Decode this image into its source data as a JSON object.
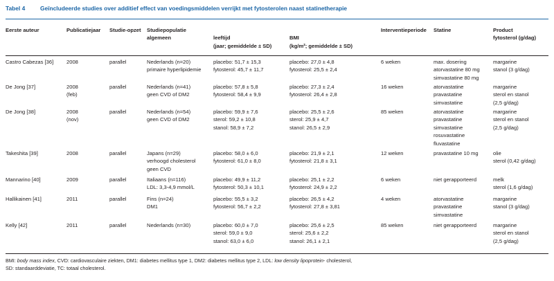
{
  "table": {
    "number": "Tabel 4",
    "title": "Geïncludeerde studies over additief effect van voedingsmiddelen verrijkt met fytosterolen naast statinetherapie"
  },
  "headers": {
    "author": "Eerste auteur",
    "year": "Publicatiejaar",
    "design": "Studie-opzet",
    "population": [
      "Studiepopulatie",
      "algemeen"
    ],
    "age": [
      "",
      "leeftijd",
      "(jaar; gemiddelde ± SD)"
    ],
    "bmi": [
      "",
      "BMI",
      "(kg/m²; gemiddelde ± SD)"
    ],
    "period": "Interventieperiode",
    "statin": "Statine",
    "product": [
      "Product",
      "fytosterol (g/dag)"
    ]
  },
  "rows": [
    {
      "author": [
        "Castro Cabezas [36]"
      ],
      "year": [
        "2008"
      ],
      "design": [
        "parallel"
      ],
      "population": [
        "Nederlands (n=20)",
        "primaire hyperlipidemie"
      ],
      "age": [
        "placebo: 51,7 ± 15,3",
        "fytosterol: 45,7 ± 11,7"
      ],
      "bmi": [
        "placebo: 27,0 ± 4,8",
        "fytosterol: 25,5 ± 2,4"
      ],
      "period": [
        "6 weken"
      ],
      "statin": [
        "max. dosering",
        "atorvastatine 80 mg",
        "simvastatine 80 mg"
      ],
      "product": [
        "margarine",
        "stanol (3 g/dag)"
      ]
    },
    {
      "author": [
        "De Jong [37]"
      ],
      "year": [
        "2008",
        "(feb)"
      ],
      "design": [
        "parallel"
      ],
      "population": [
        "Nederlands (n=41)",
        "geen CVD of DM2"
      ],
      "age": [
        "placebo: 57,8 ± 5,8",
        "fytosterol: 58,4 ± 9,9"
      ],
      "bmi": [
        "placebo: 27,3 ± 2,4",
        "fytosterol: 26,4 ± 2,8"
      ],
      "period": [
        "16 weken"
      ],
      "statin": [
        "atorvastatine",
        "pravastatine",
        "simvastatine"
      ],
      "product": [
        "margarine",
        "sterol en stanol",
        "(2,5 g/dag)"
      ]
    },
    {
      "author": [
        "De Jong [38]"
      ],
      "year": [
        "2008",
        "(nov)"
      ],
      "design": [
        "parallel"
      ],
      "population": [
        "Nederlands (n=54)",
        "geen CVD of DM2"
      ],
      "age": [
        "placebo: 59,9 ± 7,6",
        "sterol: 59,2 ± 10,8",
        "stanol: 58,9 ± 7,2"
      ],
      "bmi": [
        "placebo: 25,5 ± 2,6",
        "sterol: 25,9 ± 4,7",
        "stanol: 26,5 ± 2,9"
      ],
      "period": [
        "85 weken"
      ],
      "statin": [
        "atorvastatine",
        "pravastatine",
        "simvastatine",
        "rosuvastatine",
        "fluvastatine"
      ],
      "product": [
        "margarine",
        "sterol en stanol",
        "(2,5 g/dag)"
      ]
    },
    {
      "author": [
        "Takeshita [39]"
      ],
      "year": [
        "2008"
      ],
      "design": [
        "parallel"
      ],
      "population": [
        "Japans (n=29)",
        "verhoogd cholesterol",
        "geen CVD"
      ],
      "age": [
        "placebo: 58,0 ± 6,0",
        "fytosterol: 61,0 ± 8,0"
      ],
      "bmi": [
        "placebo: 21,9 ± 2,1",
        "fytosterol: 21,8 ± 3,1"
      ],
      "period": [
        "12 weken"
      ],
      "statin": [
        "pravastatine 10 mg"
      ],
      "product": [
        "olie",
        "sterol (0,42 g/dag)"
      ]
    },
    {
      "author": [
        "Mannarino [40]"
      ],
      "year": [
        "2009"
      ],
      "design": [
        "parallel"
      ],
      "population": [
        "Italiaans (n=116)",
        "LDL: 3,3-4,9 mmol/L"
      ],
      "age": [
        "placebo: 49,9 ± 11,2",
        "fytosterol: 50,3 ± 10,1"
      ],
      "bmi": [
        "placebo: 25,1 ± 2,2",
        "fytosterol: 24,9 ± 2,2"
      ],
      "period": [
        "6 weken"
      ],
      "statin": [
        "niet gerapporteerd"
      ],
      "product": [
        "melk",
        "sterol (1,6 g/dag)"
      ]
    },
    {
      "author": [
        "Hallikainen [41]"
      ],
      "year": [
        "2011"
      ],
      "design": [
        "parallel"
      ],
      "population": [
        "Fins (n=24)",
        "DM1"
      ],
      "age": [
        "placebo: 55,5 ± 3,2",
        "fytosterol: 56,7 ± 2,2"
      ],
      "bmi": [
        "placebo: 26,5 ± 4,2",
        "fytosterol: 27,8 ± 3,81"
      ],
      "period": [
        "4 weken"
      ],
      "statin": [
        "atorvastatine",
        "pravastatine",
        "simvastatine"
      ],
      "product": [
        "margarine",
        "stanol (3 g/dag)"
      ]
    },
    {
      "author": [
        "Kelly [42]"
      ],
      "year": [
        "2011"
      ],
      "design": [
        "parallel"
      ],
      "population": [
        "Nederlands (n=30)"
      ],
      "age": [
        "placebo: 60,0 ± 7,0",
        "sterol: 59,0 ± 9,0",
        "stanol: 63,0 ± 6,0"
      ],
      "bmi": [
        "placebo: 25,6 ± 2,5",
        "sterol: 25,6 ± 2,2",
        "stanol: 26,1 ± 2,1"
      ],
      "period": [
        "85 weken"
      ],
      "statin": [
        "niet gerapporteerd"
      ],
      "product": [
        "margarine",
        "sterol en stanol",
        "(2,5 g/dag)"
      ]
    }
  ],
  "footnote": {
    "line1_a": "BMI: ",
    "line1_b": "body mass index",
    "line1_c": ", CVD: cardiovasculaire ziekten, DM1: diabetes mellitus type 1, DM2: diabetes mellitus type 2, LDL: ",
    "line1_d": "low density lipoprotein",
    "line1_e": "- cholesterol,",
    "line2": "SD: standaarddeviatie, TC: totaal cholesterol."
  }
}
